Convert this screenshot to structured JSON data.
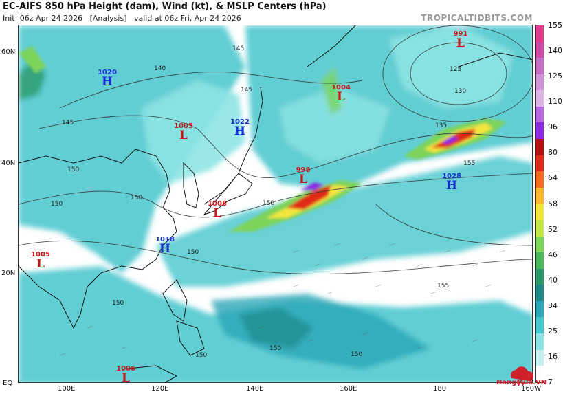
{
  "header": {
    "title": "EC-AIFS 850 hPa Height (dam), Wind (kt), & MSLP Centers (hPa)",
    "init": "Init: 06z Apr 24 2026",
    "analysis": "[Analysis]",
    "valid": "valid at 06z Fri, Apr 24 2026",
    "brand": "TROPICALTIDBITS.COM"
  },
  "axes": {
    "lat_labels": [
      "60N",
      "40N",
      "20N",
      "EQ"
    ],
    "lon_labels": [
      "100E",
      "120E",
      "140E",
      "160E",
      "180",
      "160W"
    ]
  },
  "colorbar": {
    "labels": [
      "155",
      "140",
      "125",
      "110",
      "96",
      "80",
      "64",
      "58",
      "52",
      "46",
      "40",
      "34",
      "25",
      "16",
      "7"
    ],
    "colors": [
      "#e23c8e",
      "#cf4ba8",
      "#c46cc0",
      "#cf92d6",
      "#dcb5e4",
      "#b865e0",
      "#8a2be2",
      "#b5120f",
      "#e02a18",
      "#f36a1d",
      "#f6b42a",
      "#f3e63c",
      "#c6e84a",
      "#7ed35a",
      "#48b558",
      "#2b9a6a",
      "#1f8a8a",
      "#2ba6b6",
      "#45c6cc",
      "#8ee4e4",
      "#c8f2f2",
      "#ffffff"
    ]
  },
  "pressure_centers": [
    {
      "type": "H",
      "value": "1020"
    },
    {
      "type": "L",
      "value": "1005"
    },
    {
      "type": "H",
      "value": "1022"
    },
    {
      "type": "L",
      "value": "1004"
    },
    {
      "type": "L",
      "value": "991"
    },
    {
      "type": "L",
      "value": "998"
    },
    {
      "type": "H",
      "value": "1028"
    },
    {
      "type": "L",
      "value": "1008"
    },
    {
      "type": "H",
      "value": "1018"
    },
    {
      "type": "L",
      "value": "1005"
    },
    {
      "type": "L",
      "value": "1006"
    }
  ],
  "contour_labels": [
    "145",
    "140",
    "145",
    "145",
    "150",
    "150",
    "150",
    "150",
    "150",
    "150",
    "150",
    "125",
    "130",
    "135",
    "155",
    "155",
    "150",
    "150"
  ],
  "watermark": "NangMua.VN"
}
